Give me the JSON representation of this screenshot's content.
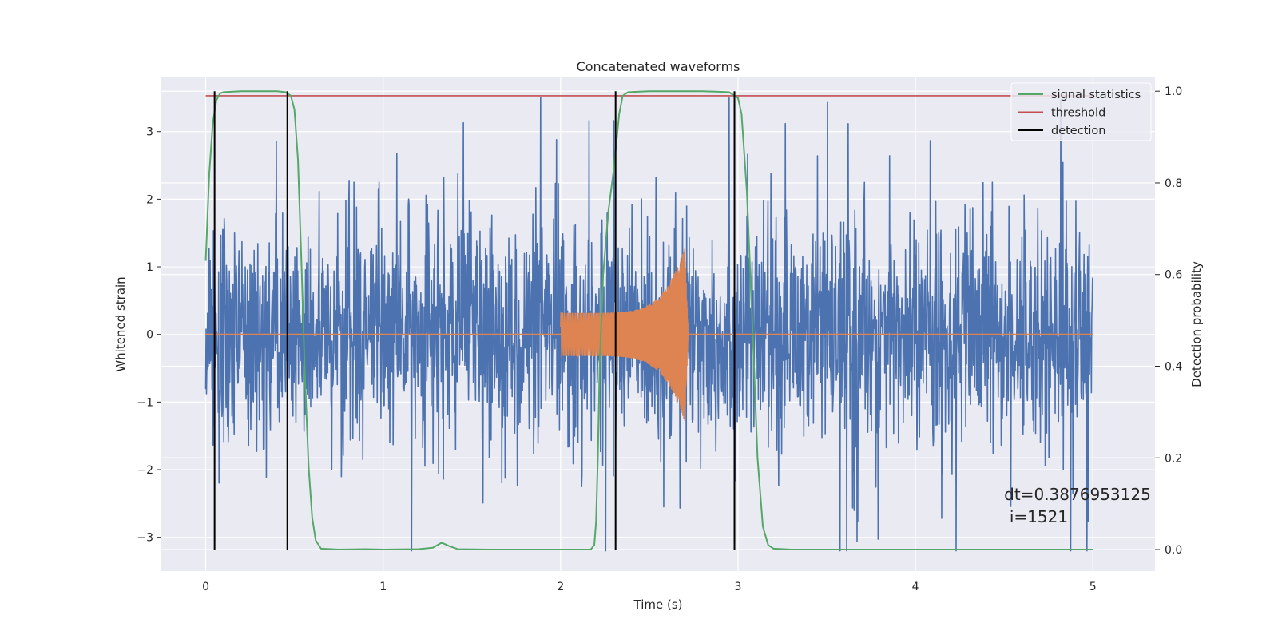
{
  "chart_data": {
    "type": "line",
    "title": "Concatenated waveforms",
    "xlabel": "Time (s)",
    "ylabel_left": "Whitened strain",
    "ylabel_right": "Detection probability",
    "xlim": [
      -0.25,
      5.35
    ],
    "ylim_left": [
      -3.5,
      3.8
    ],
    "ylim_right": [
      -0.047,
      1.03
    ],
    "x_ticks": [
      0,
      1,
      2,
      3,
      4,
      5
    ],
    "x_tick_labels": [
      "0",
      "1",
      "2",
      "3",
      "4",
      "5"
    ],
    "y_left_ticks": [
      -3,
      -2,
      -1,
      0,
      1,
      2,
      3
    ],
    "y_left_tick_labels": [
      "−3",
      "−2",
      "−1",
      "0",
      "1",
      "2",
      "3"
    ],
    "y_right_ticks": [
      0.0,
      0.2,
      0.4,
      0.6,
      0.8,
      1.0
    ],
    "y_right_tick_labels": [
      "0.0",
      "0.2",
      "0.4",
      "0.6",
      "0.8",
      "1.0"
    ],
    "grid": true,
    "legend_position": "top-right",
    "legend": [
      {
        "label": "signal statistics",
        "color": "#55a868"
      },
      {
        "label": "threshold",
        "color": "#c44e52"
      },
      {
        "label": "detection",
        "color": "#000000"
      }
    ],
    "series": [
      {
        "role": "noise",
        "axis": "left",
        "color": "#4c72b0",
        "x_range": [
          0,
          5
        ],
        "typical_amplitude": 0.8,
        "peak_range": [
          -3.2,
          3.5
        ]
      },
      {
        "role": "injected-waveform",
        "axis": "left",
        "color": "#dd8452",
        "segments": [
          {
            "x": [
              2.0,
              2.72
            ],
            "amplitude_start": 0.32,
            "amplitude_peak": 1.3,
            "peak_x": 2.7
          }
        ]
      },
      {
        "name": "signal statistics",
        "axis": "right",
        "color": "#55a868",
        "points": [
          [
            0.0,
            0.63
          ],
          [
            0.02,
            0.82
          ],
          [
            0.04,
            0.93
          ],
          [
            0.06,
            0.98
          ],
          [
            0.08,
            0.995
          ],
          [
            0.1,
            0.998
          ],
          [
            0.2,
            1.0
          ],
          [
            0.3,
            1.0
          ],
          [
            0.4,
            1.0
          ],
          [
            0.45,
            0.998
          ],
          [
            0.48,
            0.99
          ],
          [
            0.5,
            0.96
          ],
          [
            0.52,
            0.85
          ],
          [
            0.54,
            0.62
          ],
          [
            0.56,
            0.37
          ],
          [
            0.58,
            0.18
          ],
          [
            0.6,
            0.07
          ],
          [
            0.62,
            0.02
          ],
          [
            0.65,
            0.002
          ],
          [
            0.75,
            0.0
          ],
          [
            0.9,
            0.001
          ],
          [
            1.0,
            0.0
          ],
          [
            1.2,
            0.001
          ],
          [
            1.28,
            0.004
          ],
          [
            1.33,
            0.015
          ],
          [
            1.37,
            0.008
          ],
          [
            1.42,
            0.001
          ],
          [
            1.6,
            0.0
          ],
          [
            2.0,
            0.0
          ],
          [
            2.17,
            0.0
          ],
          [
            2.19,
            0.01
          ],
          [
            2.2,
            0.06
          ],
          [
            2.21,
            0.2
          ],
          [
            2.22,
            0.4
          ],
          [
            2.24,
            0.6
          ],
          [
            2.27,
            0.74
          ],
          [
            2.3,
            0.83
          ],
          [
            2.33,
            0.95
          ],
          [
            2.35,
            0.99
          ],
          [
            2.38,
            0.998
          ],
          [
            2.5,
            1.0
          ],
          [
            2.8,
            1.0
          ],
          [
            2.95,
            0.998
          ],
          [
            3.0,
            0.985
          ],
          [
            3.02,
            0.95
          ],
          [
            3.05,
            0.78
          ],
          [
            3.08,
            0.5
          ],
          [
            3.11,
            0.2
          ],
          [
            3.14,
            0.05
          ],
          [
            3.17,
            0.01
          ],
          [
            3.2,
            0.002
          ],
          [
            3.3,
            0.0
          ],
          [
            4.0,
            0.0
          ],
          [
            5.0,
            0.0
          ]
        ]
      },
      {
        "name": "threshold",
        "axis": "right",
        "color": "#c44e52",
        "x": [
          0,
          5
        ],
        "value": 0.99
      },
      {
        "name": "detection",
        "axis": "right",
        "color": "#000000",
        "x_positions": [
          0.05,
          0.46,
          2.31,
          2.98
        ],
        "y_range": [
          0,
          1.0
        ]
      }
    ],
    "annotations": [
      {
        "text": "dt=0.3876953125",
        "x": 4.5,
        "y": -2.45
      },
      {
        "text": "i=1521",
        "x": 4.53,
        "y": -2.78
      }
    ]
  }
}
